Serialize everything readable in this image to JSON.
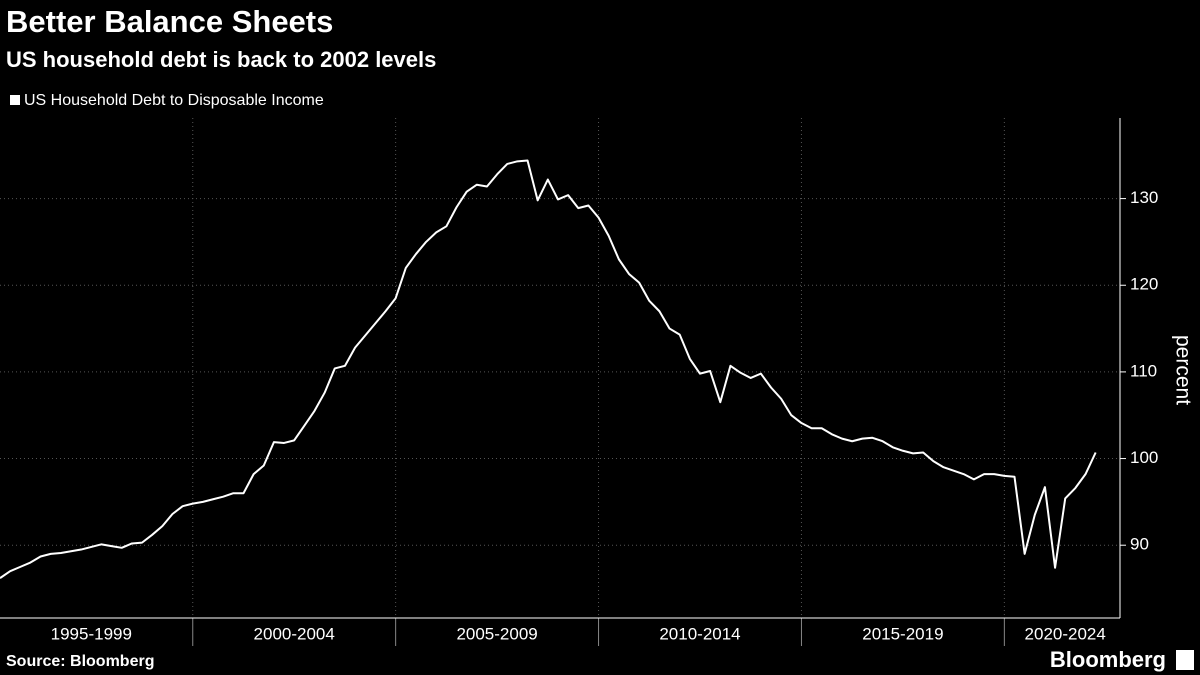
{
  "chart_data": {
    "type": "line",
    "title": "Better Balance Sheets",
    "subtitle": "US household debt is back to 2002 levels",
    "y_label": "percent",
    "source": "Source: Bloomberg",
    "brand": "Bloomberg",
    "x": [
      1995.25,
      1995.5,
      1995.75,
      1996,
      1996.25,
      1996.5,
      1996.75,
      1997,
      1997.25,
      1997.5,
      1997.75,
      1998,
      1998.25,
      1998.5,
      1998.75,
      1999,
      1999.25,
      1999.5,
      1999.75,
      2000,
      2000.25,
      2000.5,
      2000.75,
      2001,
      2001.25,
      2001.5,
      2001.75,
      2002,
      2002.25,
      2002.5,
      2002.75,
      2003,
      2003.25,
      2003.5,
      2003.75,
      2004,
      2004.25,
      2004.5,
      2004.75,
      2005,
      2005.25,
      2005.5,
      2005.75,
      2006,
      2006.25,
      2006.5,
      2006.75,
      2007,
      2007.25,
      2007.5,
      2007.75,
      2008,
      2008.25,
      2008.5,
      2008.75,
      2009,
      2009.25,
      2009.5,
      2009.75,
      2010,
      2010.25,
      2010.5,
      2010.75,
      2011,
      2011.25,
      2011.5,
      2011.75,
      2012,
      2012.25,
      2012.5,
      2012.75,
      2013,
      2013.25,
      2013.5,
      2013.75,
      2014,
      2014.25,
      2014.5,
      2014.75,
      2015,
      2015.25,
      2015.5,
      2015.75,
      2016,
      2016.25,
      2016.5,
      2016.75,
      2017,
      2017.25,
      2017.5,
      2017.75,
      2018,
      2018.25,
      2018.5,
      2018.75,
      2019,
      2019.25,
      2019.5,
      2019.75,
      2020,
      2020.25,
      2020.5,
      2020.75,
      2021,
      2021.25,
      2021.5,
      2021.75,
      2022,
      2022.25
    ],
    "series": [
      {
        "name": "US Household Debt to Disposable Income",
        "color": "#ffffff",
        "values": [
          86.2,
          87,
          87.5,
          88,
          88.7,
          89,
          89.1,
          89.3,
          89.5,
          89.8,
          90.1,
          89.9,
          89.7,
          90.2,
          90.3,
          91.2,
          92.2,
          93.6,
          94.5,
          94.8,
          95,
          95.3,
          95.6,
          96,
          96,
          98.2,
          99.2,
          101.9,
          101.8,
          102.1,
          103.8,
          105.5,
          107.6,
          110.4,
          110.7,
          112.8,
          114.2,
          115.6,
          117,
          118.5,
          122,
          123.6,
          125,
          126.1,
          126.8,
          129,
          130.8,
          131.6,
          131.4,
          132.8,
          134,
          134.3,
          134.4,
          129.8,
          132.2,
          129.9,
          130.4,
          128.9,
          129.2,
          127.8,
          125.7,
          123,
          121.3,
          120.3,
          118.2,
          117,
          115,
          114.3,
          111.5,
          109.8,
          110.1,
          106.5,
          110.7,
          109.9,
          109.3,
          109.8,
          108.2,
          106.9,
          105,
          104.1,
          103.5,
          103.5,
          102.8,
          102.3,
          102,
          102.3,
          102.4,
          102,
          101.3,
          100.9,
          100.6,
          100.7,
          99.7,
          99,
          98.6,
          98.2,
          97.6,
          98.2,
          98.2,
          98,
          97.9,
          89,
          93.5,
          96.7,
          87.4,
          95.4,
          96.6,
          98.2,
          100.7
        ]
      }
    ],
    "xlim": [
      1995.25,
      2022.85
    ],
    "xticks": [
      {
        "value": 1997.5,
        "label": "1995-1999"
      },
      {
        "value": 2002.5,
        "label": "2000-2004"
      },
      {
        "value": 2007.5,
        "label": "2005-2009"
      },
      {
        "value": 2012.5,
        "label": "2010-2014"
      },
      {
        "value": 2017.5,
        "label": "2015-2019"
      },
      {
        "value": 2021.5,
        "label": "2020-2024"
      }
    ],
    "xgrid": [
      2000,
      2005,
      2010,
      2015,
      2020
    ],
    "ylim": [
      81.6,
      139.3
    ],
    "yticks": [
      90,
      100,
      110,
      120,
      130
    ],
    "grid": true
  }
}
